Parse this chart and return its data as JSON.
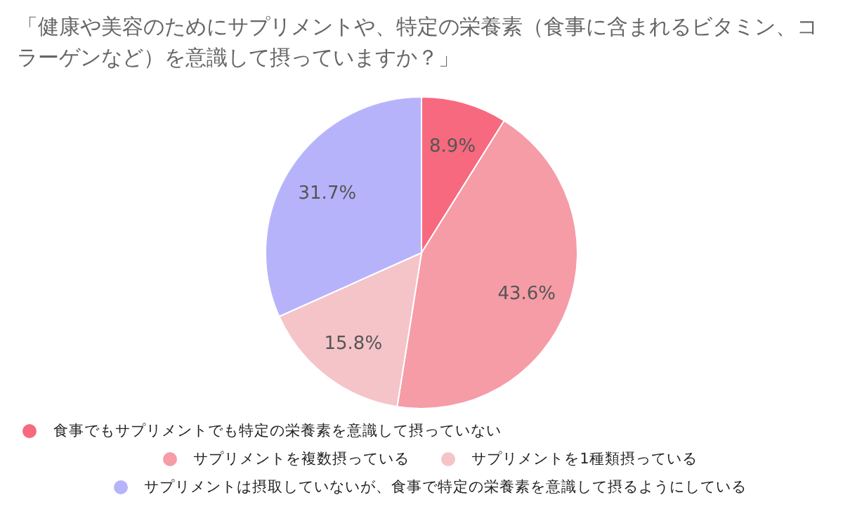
{
  "chart_data": {
    "type": "pie",
    "title": "「健康や美容のためにサプリメントや、特定の栄養素（食事に含まれるビタミン、コラーゲンなど）を意識して摂っていますか？」",
    "categories": [
      "食事でもサプリメントでも特定の栄養素を意識して摂っていない",
      "サプリメントを複数摂っている",
      "サプリメントを1種類摂っている",
      "サプリメントは摂取していないが、食事で特定の栄養素を意識して摂るようにしている"
    ],
    "values": [
      8.9,
      43.6,
      15.8,
      31.7
    ],
    "value_labels": [
      "8.9%",
      "43.6%",
      "15.8%",
      "31.7%"
    ],
    "colors": [
      "#f7697f",
      "#f59ca7",
      "#f4c4c8",
      "#b7b3fb"
    ],
    "legend": "bottom"
  }
}
